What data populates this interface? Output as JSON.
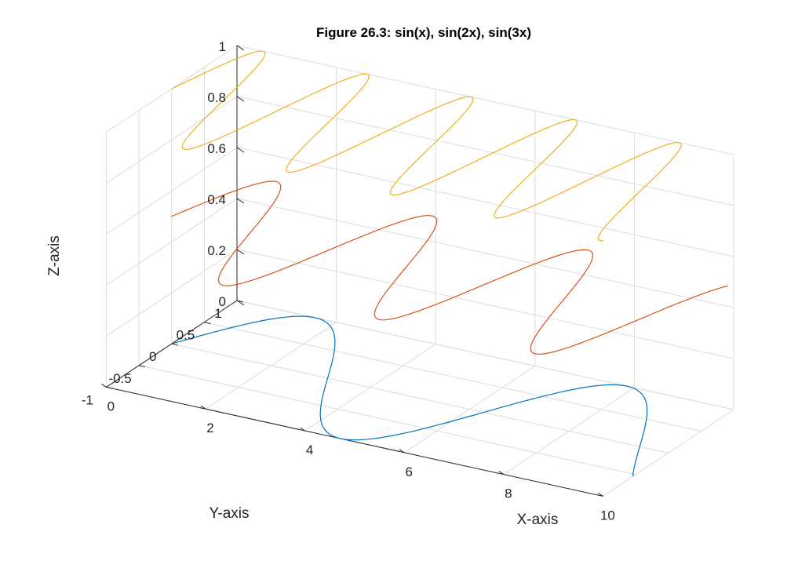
{
  "chart_data": {
    "type": "line",
    "title": "Figure 26.3: sin(x), sin(2x), sin(3x)",
    "xlabel": "X-axis",
    "ylabel": "Y-axis",
    "zlabel": "Z-axis",
    "xlim": [
      0,
      10
    ],
    "ylim": [
      -1,
      1
    ],
    "zlim": [
      0,
      1
    ],
    "xticks": [
      "0",
      "2",
      "4",
      "6",
      "8",
      "10"
    ],
    "yticks": [
      "-1",
      "-0.5",
      "0",
      "0.5",
      "1"
    ],
    "zticks": [
      "0",
      "0.2",
      "0.4",
      "0.6",
      "0.8",
      "1"
    ],
    "grid": true,
    "view": "3d",
    "series": [
      {
        "name": "sin(x)",
        "color": "#0072BD",
        "z": 0,
        "x_range": [
          0,
          10
        ],
        "y_formula": "sin(x)",
        "points": 200
      },
      {
        "name": "sin(2x)",
        "color": "#D95319",
        "z": 0.5,
        "x_range": [
          0,
          10
        ],
        "y_formula": "sin(2x)",
        "points": 300
      },
      {
        "name": "sin(3x)",
        "color": "#EDB120",
        "z": 1,
        "x_range": [
          0,
          10
        ],
        "y_formula": "sin(3x)",
        "points": 400
      }
    ]
  }
}
